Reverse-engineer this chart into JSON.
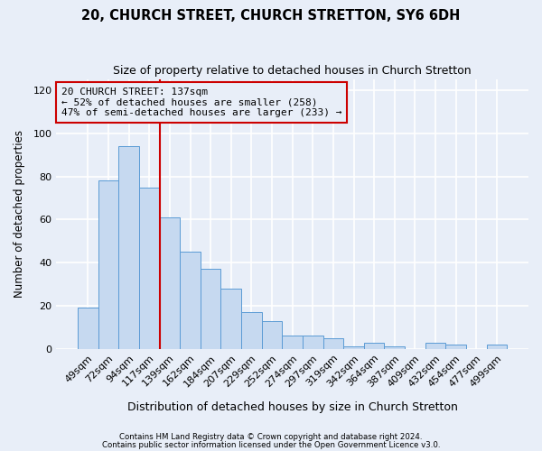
{
  "title": "20, CHURCH STREET, CHURCH STRETTON, SY6 6DH",
  "subtitle": "Size of property relative to detached houses in Church Stretton",
  "xlabel": "Distribution of detached houses by size in Church Stretton",
  "ylabel": "Number of detached properties",
  "footnote1": "Contains HM Land Registry data © Crown copyright and database right 2024.",
  "footnote2": "Contains public sector information licensed under the Open Government Licence v3.0.",
  "bar_labels": [
    "49sqm",
    "72sqm",
    "94sqm",
    "117sqm",
    "139sqm",
    "162sqm",
    "184sqm",
    "207sqm",
    "229sqm",
    "252sqm",
    "274sqm",
    "297sqm",
    "319sqm",
    "342sqm",
    "364sqm",
    "387sqm",
    "409sqm",
    "432sqm",
    "454sqm",
    "477sqm",
    "499sqm"
  ],
  "bar_values": [
    19,
    78,
    94,
    75,
    61,
    45,
    37,
    28,
    17,
    13,
    6,
    6,
    5,
    1,
    3,
    1,
    0,
    3,
    2,
    0,
    2
  ],
  "bar_color": "#c6d9f0",
  "bar_edge_color": "#5b9bd5",
  "ylim": [
    0,
    125
  ],
  "yticks": [
    0,
    20,
    40,
    60,
    80,
    100,
    120
  ],
  "vline_color": "#cc0000",
  "vline_index": 4,
  "annotation_text": "20 CHURCH STREET: 137sqm\n← 52% of detached houses are smaller (258)\n47% of semi-detached houses are larger (233) →",
  "annotation_box_edgecolor": "#cc0000",
  "bg_color": "#e8eef8"
}
